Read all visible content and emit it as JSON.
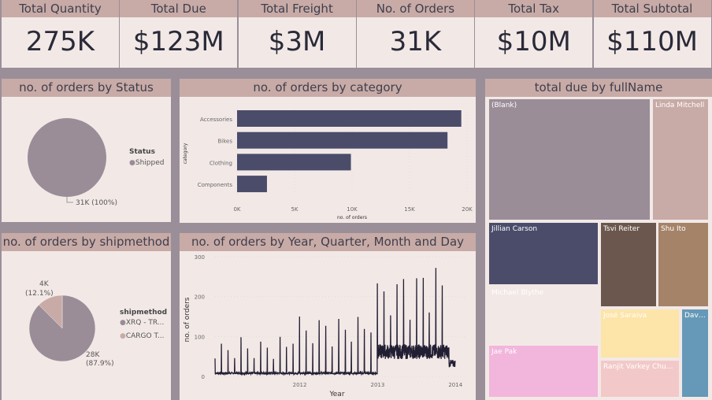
{
  "kpis": [
    {
      "label": "Total Quantity",
      "value": "275K"
    },
    {
      "label": "Total Due",
      "value": "$123M"
    },
    {
      "label": "Total Freight",
      "value": "$3M"
    },
    {
      "label": "No. of Orders",
      "value": "31K"
    },
    {
      "label": "Total Tax",
      "value": "$10M"
    },
    {
      "label": "Total Subtotal",
      "value": "$110M"
    }
  ],
  "colors": {
    "header": "#c8aba6",
    "card": "#f2e9e7",
    "bar": "#4a4c6a",
    "line": "#221f33",
    "pie_main": "#9a8d98",
    "pie_second": "#c8aba6"
  },
  "chart_data": [
    {
      "type": "pie",
      "title": "no. of orders by Status",
      "legend_title": "Status",
      "legend_position": "right",
      "slices": [
        {
          "name": "Shipped",
          "value": 31000,
          "label": "31K (100%)",
          "color": "#9a8d98"
        }
      ]
    },
    {
      "type": "bar",
      "title": "no. of orders by category",
      "xlabel": "no. of orders",
      "ylabel": "category",
      "xlim": [
        0,
        20000
      ],
      "ticks": [
        "0K",
        "5K",
        "10K",
        "15K",
        "20K"
      ],
      "categories": [
        "Accessories",
        "Bikes",
        "Clothing",
        "Components"
      ],
      "values": [
        19500,
        18300,
        9900,
        2600
      ]
    },
    {
      "type": "pie",
      "title": "no. of orders by shipmethod",
      "legend_title": "shipmethod",
      "legend_position": "right",
      "slices": [
        {
          "name": "XRQ - TR...",
          "value": 28000,
          "label": "28K",
          "pct": "(87.9%)",
          "color": "#9a8d98"
        },
        {
          "name": "CARGO T...",
          "value": 4000,
          "label": "4K",
          "pct": "(12.1%)",
          "color": "#c8aba6"
        }
      ]
    },
    {
      "type": "line",
      "title": "no. of orders by Year, Quarter, Month and Day",
      "xlabel": "Year",
      "ylabel": "no. of orders",
      "ylim": [
        0,
        300
      ],
      "yticks": [
        "0",
        "100",
        "200",
        "300"
      ],
      "xticks": [
        "2012",
        "2013",
        "2014"
      ],
      "grid": true,
      "x_range": [
        "2011-05-31",
        "2014-06-30"
      ],
      "month_end_spikes": [
        45,
        82,
        66,
        46,
        98,
        70,
        46,
        87,
        72,
        44,
        99,
        74,
        82,
        150,
        115,
        83,
        141,
        127,
        75,
        144,
        117,
        87,
        149,
        119,
        110,
        233,
        213,
        153,
        231,
        244,
        142,
        246,
        247,
        160,
        272,
        228
      ],
      "baseline": [
        {
          "from": "2011-05-31",
          "to": "2013-06-30",
          "level": 8
        },
        {
          "from": "2013-07-01",
          "to": "2014-05-31",
          "level": 62
        },
        {
          "from": "2014-06-01",
          "to": "2014-06-30",
          "level": 32
        }
      ]
    },
    {
      "type": "treemap",
      "title": "total due by fullName",
      "items": [
        {
          "name": "(Blank)",
          "color": "#9a8d98"
        },
        {
          "name": "Linda Mitchell",
          "color": "#c8aba6"
        },
        {
          "name": "Jillian Carson",
          "color": "#4a4c6a"
        },
        {
          "name": "Michael Blythe",
          "color": "#f2e8e6"
        },
        {
          "name": "Jae Pak",
          "color": "#f2b5db"
        },
        {
          "name": "Tsvi Reiter",
          "color": "#6b574d"
        },
        {
          "name": "Shu Ito",
          "color": "#a48369"
        },
        {
          "name": "José Saraiva",
          "color": "#fde4a8"
        },
        {
          "name": "Ranjit Varkey Chuduk...",
          "color": "#f2c9c8"
        },
        {
          "name": "Davi...",
          "color": "#6699b8"
        }
      ]
    }
  ]
}
